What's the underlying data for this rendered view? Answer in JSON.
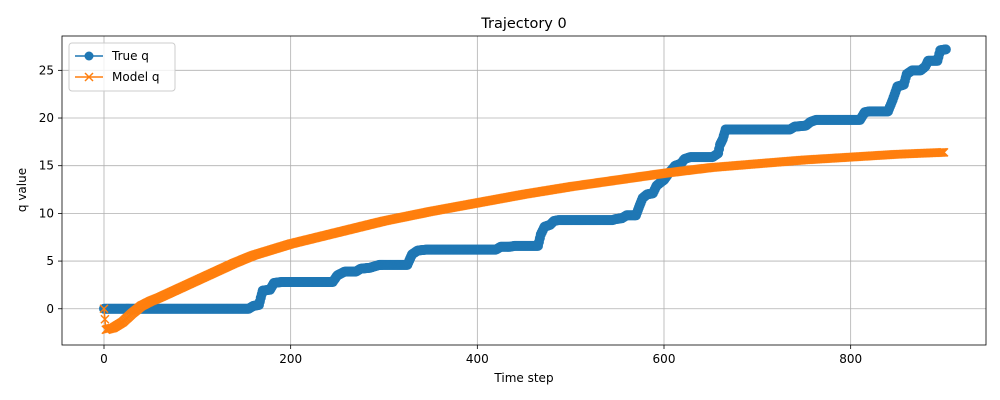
{
  "chart_data": {
    "type": "line",
    "title": "Trajectory 0",
    "xlabel": "Time step",
    "ylabel": "q value",
    "xlim": [
      -45,
      945
    ],
    "ylim": [
      -3.8,
      28.6
    ],
    "xticks": [
      0,
      200,
      400,
      600,
      800
    ],
    "yticks": [
      0,
      5,
      10,
      15,
      20,
      25
    ],
    "grid": true,
    "legend_position": "top-left",
    "series": [
      {
        "name": "True q",
        "color": "#1f77b4",
        "marker": "circle",
        "points": [
          [
            0,
            0
          ],
          [
            155,
            0
          ],
          [
            160,
            0.3
          ],
          [
            166,
            0.4
          ],
          [
            170,
            1.9
          ],
          [
            178,
            2.0
          ],
          [
            182,
            2.7
          ],
          [
            190,
            2.8
          ],
          [
            245,
            2.8
          ],
          [
            250,
            3.5
          ],
          [
            258,
            3.9
          ],
          [
            270,
            3.9
          ],
          [
            275,
            4.2
          ],
          [
            285,
            4.3
          ],
          [
            295,
            4.6
          ],
          [
            325,
            4.6
          ],
          [
            330,
            5.7
          ],
          [
            336,
            6.1
          ],
          [
            345,
            6.2
          ],
          [
            420,
            6.2
          ],
          [
            425,
            6.5
          ],
          [
            435,
            6.5
          ],
          [
            440,
            6.6
          ],
          [
            465,
            6.6
          ],
          [
            468,
            7.8
          ],
          [
            472,
            8.6
          ],
          [
            478,
            8.8
          ],
          [
            482,
            9.2
          ],
          [
            487,
            9.3
          ],
          [
            545,
            9.3
          ],
          [
            548,
            9.4
          ],
          [
            555,
            9.5
          ],
          [
            560,
            9.8
          ],
          [
            570,
            9.8
          ],
          [
            573,
            10.6
          ],
          [
            577,
            11.6
          ],
          [
            582,
            12.0
          ],
          [
            588,
            12.1
          ],
          [
            592,
            12.9
          ],
          [
            597,
            13.3
          ],
          [
            600,
            13.5
          ],
          [
            605,
            14.2
          ],
          [
            612,
            15.0
          ],
          [
            618,
            15.2
          ],
          [
            622,
            15.7
          ],
          [
            628,
            15.9
          ],
          [
            652,
            15.9
          ],
          [
            658,
            16.3
          ],
          [
            660,
            17.2
          ],
          [
            663,
            17.8
          ],
          [
            666,
            18.8
          ],
          [
            735,
            18.8
          ],
          [
            740,
            19.1
          ],
          [
            752,
            19.2
          ],
          [
            757,
            19.6
          ],
          [
            763,
            19.8
          ],
          [
            810,
            19.8
          ],
          [
            815,
            20.6
          ],
          [
            820,
            20.7
          ],
          [
            840,
            20.7
          ],
          [
            845,
            21.9
          ],
          [
            850,
            23.3
          ],
          [
            857,
            23.5
          ],
          [
            860,
            24.6
          ],
          [
            866,
            25.0
          ],
          [
            875,
            25.0
          ],
          [
            880,
            25.4
          ],
          [
            883,
            26.0
          ],
          [
            893,
            26.0
          ],
          [
            896,
            27.1
          ],
          [
            902,
            27.2
          ]
        ]
      },
      {
        "name": "Model q",
        "color": "#ff7f0e",
        "marker": "x",
        "points": [
          [
            0,
            0
          ],
          [
            2,
            -2.2
          ],
          [
            10,
            -2.0
          ],
          [
            20,
            -1.4
          ],
          [
            30,
            -0.5
          ],
          [
            40,
            0.3
          ],
          [
            50,
            0.8
          ],
          [
            60,
            1.2
          ],
          [
            80,
            2.1
          ],
          [
            100,
            3.0
          ],
          [
            120,
            3.9
          ],
          [
            140,
            4.8
          ],
          [
            160,
            5.6
          ],
          [
            180,
            6.2
          ],
          [
            200,
            6.8
          ],
          [
            250,
            8.0
          ],
          [
            300,
            9.2
          ],
          [
            350,
            10.2
          ],
          [
            400,
            11.1
          ],
          [
            450,
            12.0
          ],
          [
            500,
            12.8
          ],
          [
            550,
            13.5
          ],
          [
            600,
            14.2
          ],
          [
            650,
            14.8
          ],
          [
            700,
            15.2
          ],
          [
            750,
            15.6
          ],
          [
            800,
            15.9
          ],
          [
            850,
            16.2
          ],
          [
            900,
            16.4
          ]
        ]
      }
    ]
  }
}
